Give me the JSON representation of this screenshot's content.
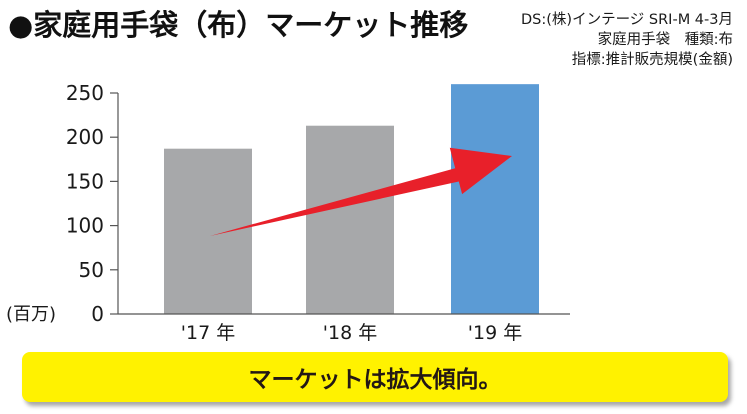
{
  "header": {
    "title": "●家庭用手袋（布）マーケット推移",
    "source_lines": [
      "DS:(株)インテージ SRI-M 4-3月",
      "家庭用手袋　種類:布",
      "指標:推計販売規模(金額)"
    ]
  },
  "chart_data": {
    "type": "bar",
    "title": "●家庭用手袋（布）マーケット推移",
    "categories": [
      "'17 年",
      "'18 年",
      "'19 年"
    ],
    "values": [
      187,
      213,
      260
    ],
    "ylabel": "(百万)",
    "xlabel": "",
    "ylim": [
      0,
      250
    ],
    "yticks": [
      0,
      50,
      100,
      150,
      200,
      250
    ],
    "grid": false,
    "legend": "none",
    "colors": [
      "#a7a8aa",
      "#a7a8aa",
      "#5b9bd5"
    ],
    "arrow_color": "#e8202a",
    "annotation": "trend arrow rising from '17 to '19"
  },
  "banner": {
    "text": "マーケットは拡大傾向。",
    "background": "#fff200"
  }
}
